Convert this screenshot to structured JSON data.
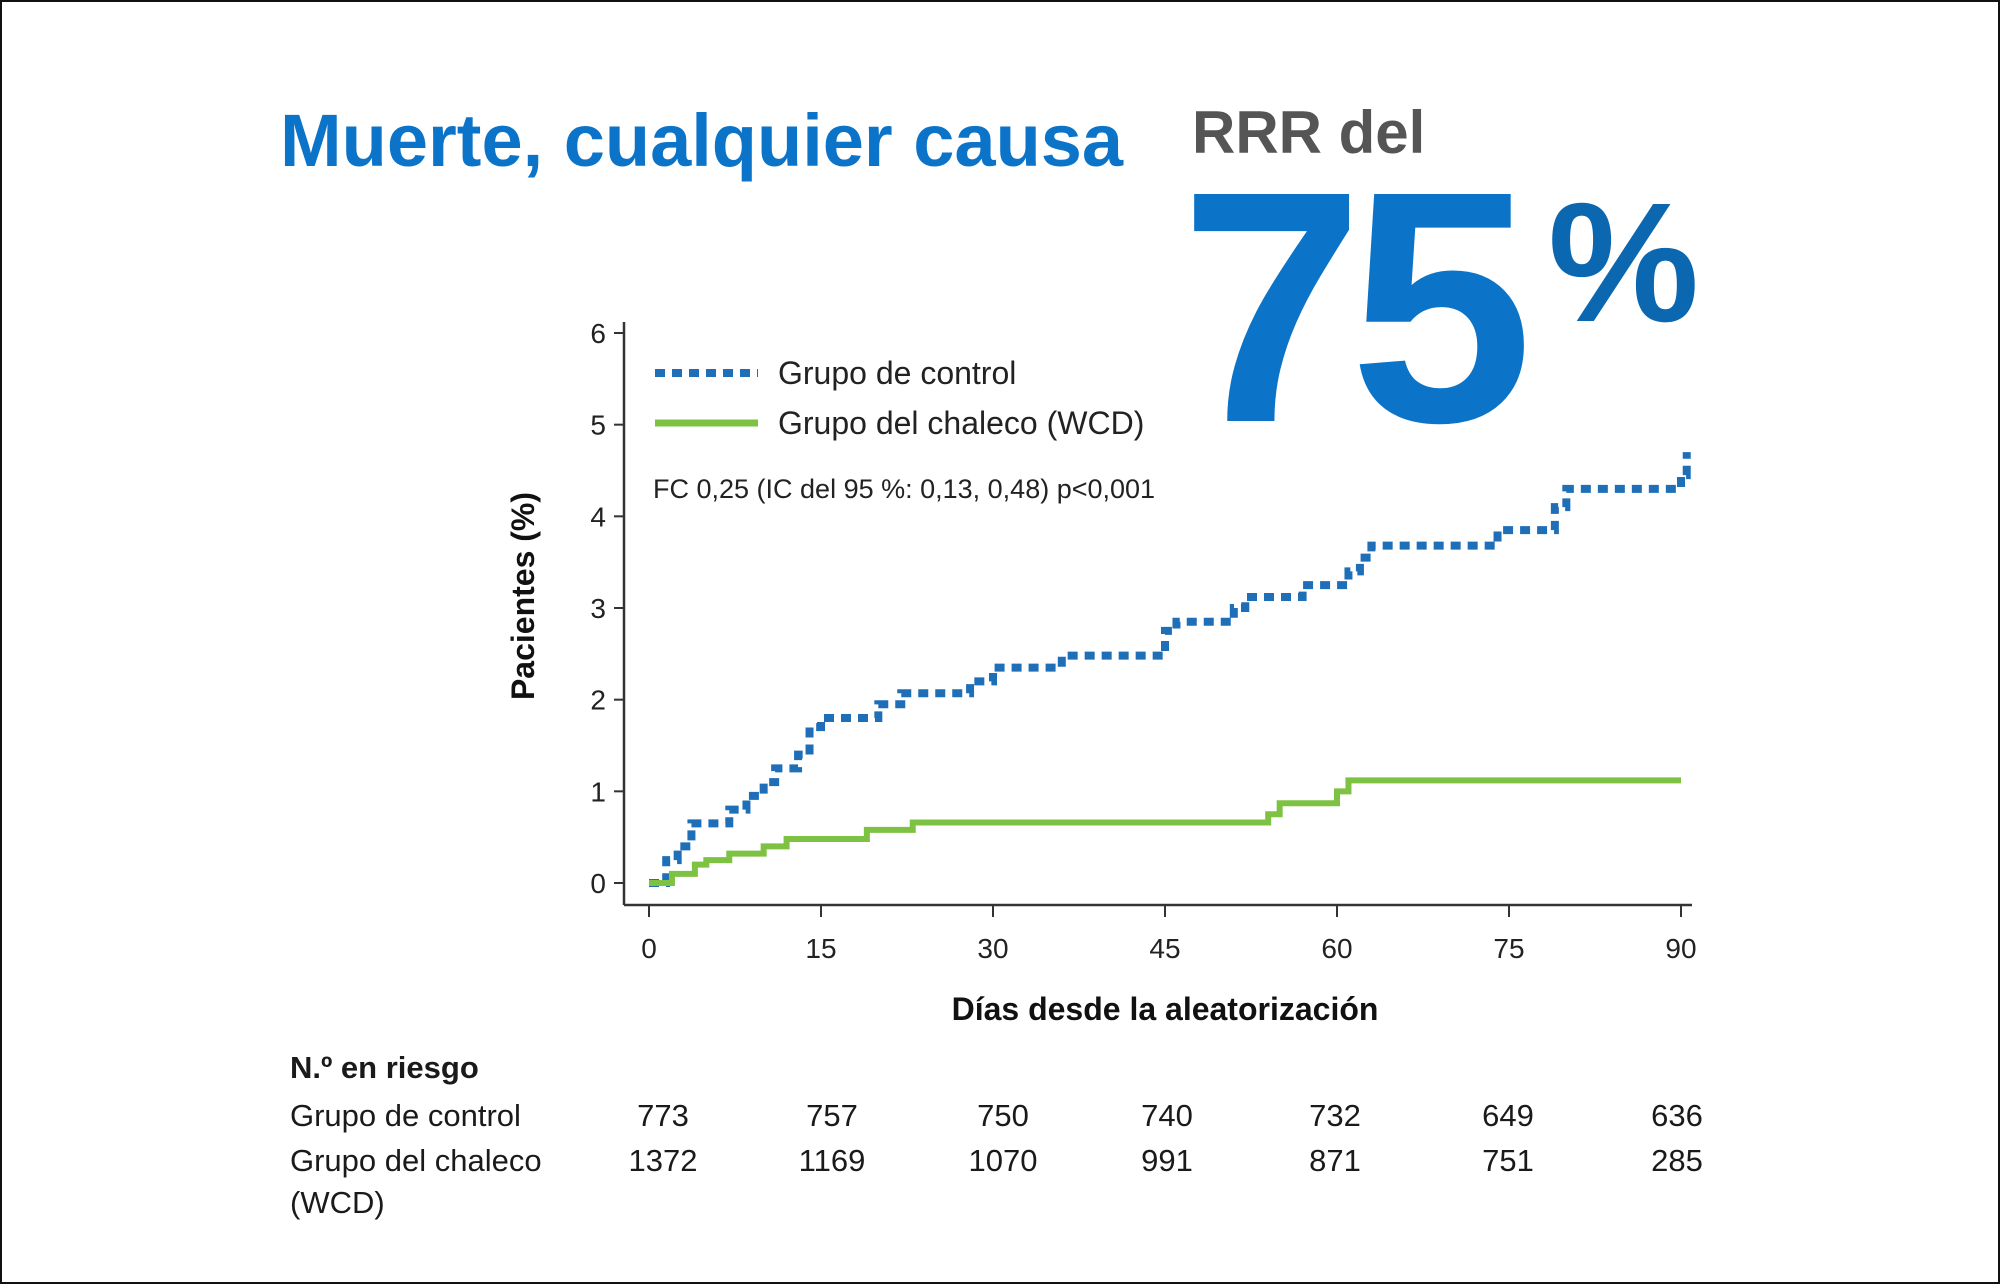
{
  "header": {
    "title": "Muerte, cualquier causa",
    "rrr_label": "RRR del",
    "rrr_value": "75",
    "rrr_unit": "%"
  },
  "chart_data": {
    "type": "line",
    "step": true,
    "xlabel": "Días desde la aleatorización",
    "ylabel": "Pacientes (%)",
    "xlim": [
      0,
      90
    ],
    "ylim": [
      0,
      6
    ],
    "xticks": [
      "0",
      "15",
      "30",
      "45",
      "60",
      "75",
      "90"
    ],
    "yticks": [
      "0",
      "1",
      "2",
      "3",
      "4",
      "5",
      "6"
    ],
    "legend_position": "top-left",
    "annotation": "FC 0,25 (IC del 95 %: 0,13, 0,48) p<0,001",
    "series": [
      {
        "name": "Grupo de control",
        "color": "#1f6fb8",
        "style": "dotted",
        "x": [
          0,
          1.5,
          2.5,
          3.7,
          7,
          8.5,
          10,
          11,
          13,
          14,
          15,
          20,
          22,
          28,
          30,
          36,
          45,
          46,
          51,
          52,
          57,
          61,
          62,
          63,
          74,
          79,
          80,
          90,
          90.5
        ],
        "y": [
          0,
          0.25,
          0.4,
          0.65,
          0.8,
          0.95,
          1.1,
          1.25,
          1.4,
          1.7,
          1.8,
          1.95,
          2.07,
          2.2,
          2.35,
          2.48,
          2.75,
          2.85,
          3.0,
          3.12,
          3.25,
          3.4,
          3.55,
          3.68,
          3.85,
          4.1,
          4.3,
          4.45,
          4.7
        ]
      },
      {
        "name": "Grupo del chaleco (WCD)",
        "color": "#7dc242",
        "style": "solid",
        "x": [
          0,
          2,
          4,
          5,
          7,
          10,
          12,
          19,
          23,
          54,
          55,
          60,
          61,
          90
        ],
        "y": [
          0,
          0.1,
          0.2,
          0.25,
          0.32,
          0.4,
          0.48,
          0.58,
          0.66,
          0.75,
          0.87,
          1.0,
          1.12,
          1.12
        ]
      }
    ]
  },
  "risk_table": {
    "heading": "N.º en riesgo",
    "rows": [
      {
        "label": "Grupo de control",
        "label2": "",
        "values": [
          "773",
          "757",
          "750",
          "740",
          "732",
          "649",
          "636"
        ]
      },
      {
        "label": "Grupo del chaleco",
        "label2": "(WCD)",
        "values": [
          "1372",
          "1169",
          "1070",
          "991",
          "871",
          "751",
          "285"
        ]
      }
    ]
  }
}
